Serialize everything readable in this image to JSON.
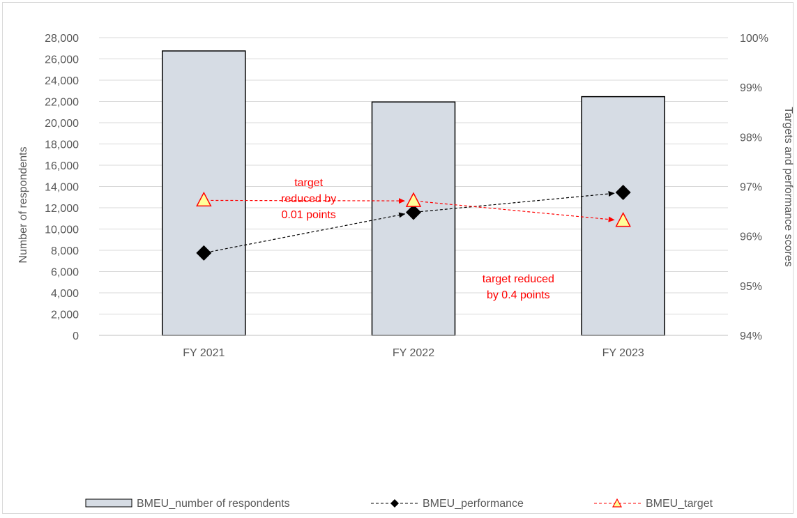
{
  "chart_data": {
    "type": "bar",
    "categories": [
      "FY 2021",
      "FY 2022",
      "FY 2023"
    ],
    "series": [
      {
        "name": "BMEU_number of respondents",
        "kind": "bar",
        "axis": "left",
        "values": [
          26750,
          21950,
          22450
        ],
        "color": "#d6dce4",
        "stroke": "#000000"
      },
      {
        "name": "BMEU_performance",
        "kind": "line",
        "axis": "right",
        "values": [
          95.66,
          96.48,
          96.88
        ],
        "color": "#000000",
        "marker": "diamond",
        "line_style": "dashed"
      },
      {
        "name": "BMEU_target",
        "kind": "line",
        "axis": "right",
        "values": [
          96.72,
          96.71,
          96.31
        ],
        "color": "#ff0000",
        "marker_fill": "#ffff99",
        "marker": "triangle",
        "line_style": "dashed"
      }
    ],
    "xlabel": "",
    "ylabel": "Number of respondents",
    "y2label": "Targets and performance scores",
    "ylim": [
      0,
      28000
    ],
    "y2lim": [
      94,
      100
    ],
    "yticks": [
      "0",
      "2,000",
      "4,000",
      "6,000",
      "8,000",
      "10,000",
      "12,000",
      "14,000",
      "16,000",
      "18,000",
      "20,000",
      "22,000",
      "24,000",
      "26,000",
      "28,000"
    ],
    "y2ticks": [
      "94%",
      "95%",
      "96%",
      "97%",
      "98%",
      "99%",
      "100%"
    ],
    "grid": true,
    "legend_position": "bottom",
    "annotations": [
      {
        "lines": [
          "target",
          "reduced by",
          "0.01 points"
        ],
        "color": "#ff0000"
      },
      {
        "lines": [
          "target reduced",
          "by 0.4 points"
        ],
        "color": "#ff0000"
      }
    ]
  }
}
